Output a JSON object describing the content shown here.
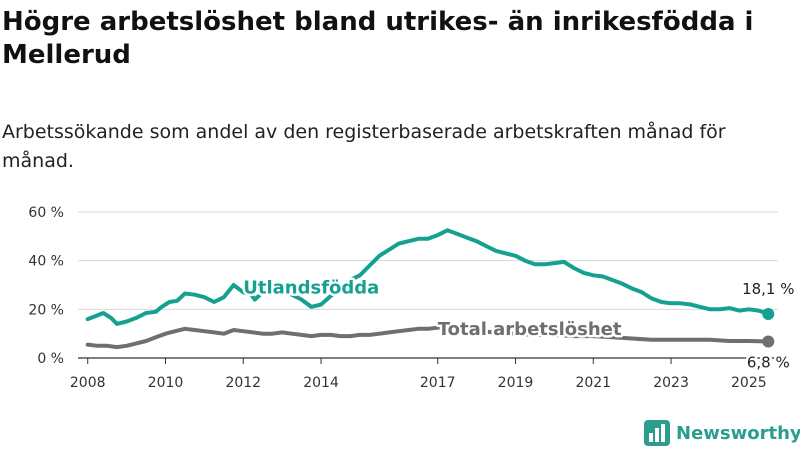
{
  "title": "Högre arbetslöshet bland utrikes- än inrikesfödda i Mellerud",
  "subtitle": "Arbetssökande som andel av den registerbaserade arbetskraften månad för månad.",
  "brand": {
    "name": "Newsworthy",
    "color": "#2a9d8f",
    "icon": "bar-chart-logo-icon"
  },
  "colors": {
    "utlandsfodda": "#14a190",
    "total": "#6e6e73",
    "grid": "#d9d9d9",
    "axis_text": "#333333"
  },
  "chart_data": {
    "type": "line",
    "title": "Högre arbetslöshet bland utrikes- än inrikesfödda i Mellerud",
    "subtitle": "Arbetssökande som andel av den registerbaserade arbetskraften månad för månad.",
    "xlabel": "",
    "ylabel": "",
    "ylim": [
      0,
      60
    ],
    "xlim": [
      2007.75,
      2025.75
    ],
    "y_ticks": [
      0,
      20,
      40,
      60
    ],
    "y_tick_labels": [
      "0 %",
      "20 %",
      "40 %",
      "60 %"
    ],
    "x_ticks": [
      2008,
      2010,
      2012,
      2014,
      2017,
      2019,
      2021,
      2023,
      2025
    ],
    "x_tick_labels": [
      "2008",
      "2010",
      "2012",
      "2014",
      "2017",
      "2019",
      "2021",
      "2023",
      "2025"
    ],
    "grid": true,
    "legend": "inline labels",
    "series": [
      {
        "name": "Utlandsfödda",
        "color": "#14a190",
        "end_label": "18,1 %",
        "end_value": 18.1,
        "points": [
          [
            2008.0,
            16
          ],
          [
            2008.25,
            17.5
          ],
          [
            2008.4,
            18.5
          ],
          [
            2008.6,
            16.5
          ],
          [
            2008.75,
            14
          ],
          [
            2009.0,
            15
          ],
          [
            2009.25,
            16.5
          ],
          [
            2009.5,
            18.5
          ],
          [
            2009.75,
            19
          ],
          [
            2009.9,
            21
          ],
          [
            2010.1,
            23
          ],
          [
            2010.3,
            23.5
          ],
          [
            2010.5,
            26.5
          ],
          [
            2010.75,
            26
          ],
          [
            2011.0,
            25
          ],
          [
            2011.25,
            23
          ],
          [
            2011.5,
            25
          ],
          [
            2011.75,
            30
          ],
          [
            2012.0,
            27
          ],
          [
            2012.2,
            26
          ],
          [
            2012.3,
            24
          ],
          [
            2012.5,
            27
          ],
          [
            2012.75,
            29
          ],
          [
            2013.0,
            27.5
          ],
          [
            2013.25,
            26
          ],
          [
            2013.5,
            24
          ],
          [
            2013.75,
            21
          ],
          [
            2014.0,
            22
          ],
          [
            2014.25,
            25.5
          ],
          [
            2014.5,
            28.5
          ],
          [
            2014.75,
            32
          ],
          [
            2015.0,
            34
          ],
          [
            2015.25,
            38
          ],
          [
            2015.5,
            42
          ],
          [
            2015.75,
            44.5
          ],
          [
            2016.0,
            47
          ],
          [
            2016.25,
            48
          ],
          [
            2016.5,
            49
          ],
          [
            2016.75,
            49
          ],
          [
            2017.0,
            50.5
          ],
          [
            2017.25,
            52.5
          ],
          [
            2017.5,
            51
          ],
          [
            2017.75,
            49.5
          ],
          [
            2018.0,
            48
          ],
          [
            2018.25,
            46
          ],
          [
            2018.5,
            44
          ],
          [
            2018.75,
            43
          ],
          [
            2019.0,
            42
          ],
          [
            2019.25,
            40
          ],
          [
            2019.5,
            38.5
          ],
          [
            2019.75,
            38.5
          ],
          [
            2020.0,
            39
          ],
          [
            2020.25,
            39.5
          ],
          [
            2020.5,
            37
          ],
          [
            2020.75,
            35
          ],
          [
            2021.0,
            34
          ],
          [
            2021.25,
            33.5
          ],
          [
            2021.5,
            32
          ],
          [
            2021.75,
            30.5
          ],
          [
            2022.0,
            28.5
          ],
          [
            2022.25,
            27
          ],
          [
            2022.5,
            24.5
          ],
          [
            2022.75,
            23
          ],
          [
            2023.0,
            22.5
          ],
          [
            2023.25,
            22.5
          ],
          [
            2023.5,
            22
          ],
          [
            2023.75,
            21
          ],
          [
            2024.0,
            20
          ],
          [
            2024.25,
            20
          ],
          [
            2024.5,
            20.5
          ],
          [
            2024.75,
            19.5
          ],
          [
            2025.0,
            20
          ],
          [
            2025.25,
            19.5
          ],
          [
            2025.5,
            18.1
          ]
        ]
      },
      {
        "name": "Total arbetslöshet",
        "color": "#6e6e73",
        "end_label": "6,8 %",
        "end_value": 6.8,
        "points": [
          [
            2008.0,
            5.5
          ],
          [
            2008.25,
            5
          ],
          [
            2008.5,
            5
          ],
          [
            2008.75,
            4.5
          ],
          [
            2009.0,
            5
          ],
          [
            2009.25,
            6
          ],
          [
            2009.5,
            7
          ],
          [
            2009.75,
            8.5
          ],
          [
            2010.0,
            10
          ],
          [
            2010.25,
            11
          ],
          [
            2010.5,
            12
          ],
          [
            2010.75,
            11.5
          ],
          [
            2011.0,
            11
          ],
          [
            2011.25,
            10.5
          ],
          [
            2011.5,
            10
          ],
          [
            2011.75,
            11.5
          ],
          [
            2012.0,
            11
          ],
          [
            2012.25,
            10.5
          ],
          [
            2012.5,
            10
          ],
          [
            2012.75,
            10
          ],
          [
            2013.0,
            10.5
          ],
          [
            2013.25,
            10
          ],
          [
            2013.5,
            9.5
          ],
          [
            2013.75,
            9
          ],
          [
            2014.0,
            9.5
          ],
          [
            2014.25,
            9.5
          ],
          [
            2014.5,
            9
          ],
          [
            2014.75,
            9
          ],
          [
            2015.0,
            9.5
          ],
          [
            2015.25,
            9.5
          ],
          [
            2015.5,
            10
          ],
          [
            2015.75,
            10.5
          ],
          [
            2016.0,
            11
          ],
          [
            2016.25,
            11.5
          ],
          [
            2016.5,
            12
          ],
          [
            2016.75,
            12
          ],
          [
            2017.0,
            12.5
          ],
          [
            2017.25,
            12.5
          ],
          [
            2017.5,
            12
          ],
          [
            2017.75,
            11.5
          ],
          [
            2018.0,
            11
          ],
          [
            2018.5,
            10.5
          ],
          [
            2019.0,
            10
          ],
          [
            2019.5,
            9.5
          ],
          [
            2020.0,
            9.5
          ],
          [
            2020.5,
            9
          ],
          [
            2021.0,
            9
          ],
          [
            2021.5,
            8.5
          ],
          [
            2022.0,
            8
          ],
          [
            2022.5,
            7.5
          ],
          [
            2023.0,
            7.5
          ],
          [
            2023.5,
            7.5
          ],
          [
            2024.0,
            7.5
          ],
          [
            2024.5,
            7
          ],
          [
            2025.0,
            7
          ],
          [
            2025.5,
            6.8
          ]
        ]
      }
    ]
  }
}
